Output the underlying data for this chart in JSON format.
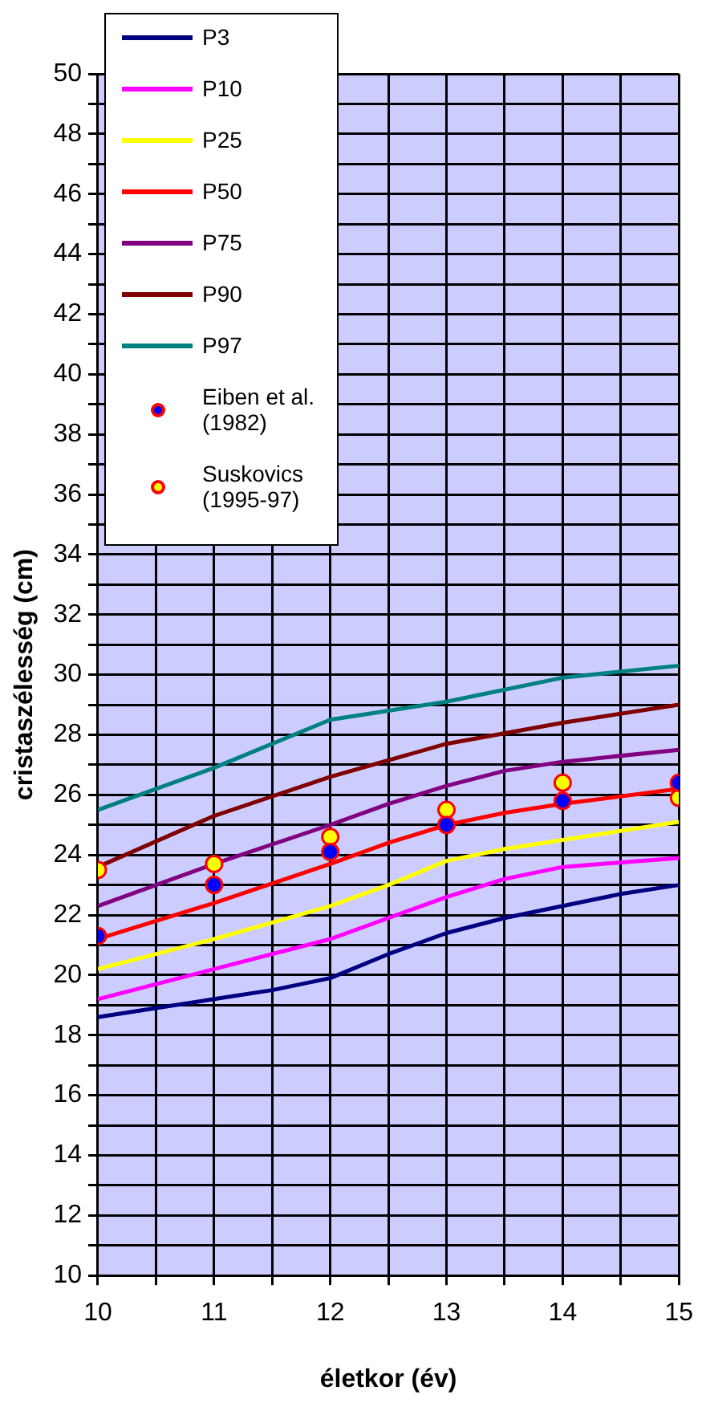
{
  "chart_data": {
    "type": "line",
    "xlabel": "életkor (év)",
    "ylabel": "cristaszélesség (cm)",
    "xlim": [
      10,
      15
    ],
    "ylim": [
      10,
      50
    ],
    "xticks": [
      10,
      {
        "value": 10.5,
        "label": null
      },
      11,
      {
        "value": 11.5,
        "label": null
      },
      12,
      {
        "value": 12.5,
        "label": null
      },
      13,
      {
        "value": 13.5,
        "label": null
      },
      14,
      {
        "value": 14.5,
        "label": null
      },
      15
    ],
    "yticks": [
      10,
      {
        "value": 11,
        "label": null
      },
      12,
      {
        "value": 13,
        "label": null
      },
      14,
      {
        "value": 15,
        "label": null
      },
      16,
      {
        "value": 17,
        "label": null
      },
      18,
      {
        "value": 19,
        "label": null
      },
      20,
      {
        "value": 21,
        "label": null
      },
      22,
      {
        "value": 23,
        "label": null
      },
      24,
      {
        "value": 25,
        "label": null
      },
      26,
      {
        "value": 27,
        "label": null
      },
      28,
      {
        "value": 29,
        "label": null
      },
      30,
      {
        "value": 31,
        "label": null
      },
      32,
      {
        "value": 33,
        "label": null
      },
      34,
      {
        "value": 35,
        "label": null
      },
      36,
      {
        "value": 37,
        "label": null
      },
      38,
      {
        "value": 39,
        "label": null
      },
      40,
      {
        "value": 41,
        "label": null
      },
      42,
      {
        "value": 43,
        "label": null
      },
      44,
      {
        "value": 45,
        "label": null
      },
      46,
      {
        "value": 47,
        "label": null
      },
      48,
      {
        "value": 49,
        "label": null
      },
      50
    ],
    "grid": true,
    "legend": "top left",
    "line_style": "solid",
    "series": [
      {
        "name": "P3",
        "color": "#000080",
        "marker": "none",
        "x": [
          10,
          10.5,
          11,
          11.5,
          12,
          12.5,
          13,
          13.5,
          14,
          14.5,
          15
        ],
        "values": [
          18.6,
          18.9,
          19.2,
          19.5,
          19.9,
          20.7,
          21.4,
          21.9,
          22.3,
          22.7,
          23.0
        ]
      },
      {
        "name": "P10",
        "color": "#ff00ff",
        "marker": "none",
        "x": [
          10,
          11,
          12,
          13,
          13.5,
          14,
          15
        ],
        "values": [
          19.2,
          20.2,
          21.2,
          22.6,
          23.2,
          23.6,
          23.9
        ]
      },
      {
        "name": "P25",
        "color": "#ffff00",
        "marker": "none",
        "x": [
          10,
          11,
          12,
          12.5,
          13,
          13.5,
          14,
          15
        ],
        "values": [
          20.2,
          21.2,
          22.3,
          23.0,
          23.8,
          24.2,
          24.5,
          25.1
        ]
      },
      {
        "name": "P50",
        "color": "#ff0000",
        "marker": "none",
        "x": [
          10,
          11,
          12,
          12.5,
          13,
          13.5,
          14,
          15
        ],
        "values": [
          21.2,
          22.4,
          23.7,
          24.4,
          25.0,
          25.4,
          25.7,
          26.2
        ]
      },
      {
        "name": "P75",
        "color": "#800080",
        "marker": "none",
        "x": [
          10,
          11,
          12,
          12.5,
          13,
          13.5,
          14,
          15
        ],
        "values": [
          22.3,
          23.7,
          25.0,
          25.7,
          26.3,
          26.8,
          27.1,
          27.5
        ]
      },
      {
        "name": "P90",
        "color": "#800000",
        "marker": "none",
        "x": [
          10,
          11,
          12,
          13,
          14,
          15
        ],
        "values": [
          23.6,
          25.3,
          26.6,
          27.7,
          28.4,
          29.0
        ]
      },
      {
        "name": "P97",
        "color": "#008080",
        "marker": "none",
        "x": [
          10,
          11,
          12,
          12.5,
          13,
          14,
          15
        ],
        "values": [
          25.5,
          26.9,
          28.5,
          28.8,
          29.1,
          29.9,
          30.3
        ]
      },
      {
        "name": "Eiben et al. (1982)",
        "type": "scatter",
        "color": "#0000ff",
        "marker": "circle",
        "x": [
          10,
          11,
          12,
          13,
          14,
          15
        ],
        "values": [
          21.3,
          23.0,
          24.1,
          25.0,
          25.8,
          26.4
        ]
      },
      {
        "name": "Suskovics (1995-97)",
        "type": "scatter",
        "color": "#ffff00",
        "marker": "circle",
        "x": [
          10,
          11,
          12,
          13,
          14,
          15
        ],
        "values": [
          23.5,
          23.7,
          24.6,
          25.5,
          26.4,
          25.9
        ]
      }
    ]
  }
}
